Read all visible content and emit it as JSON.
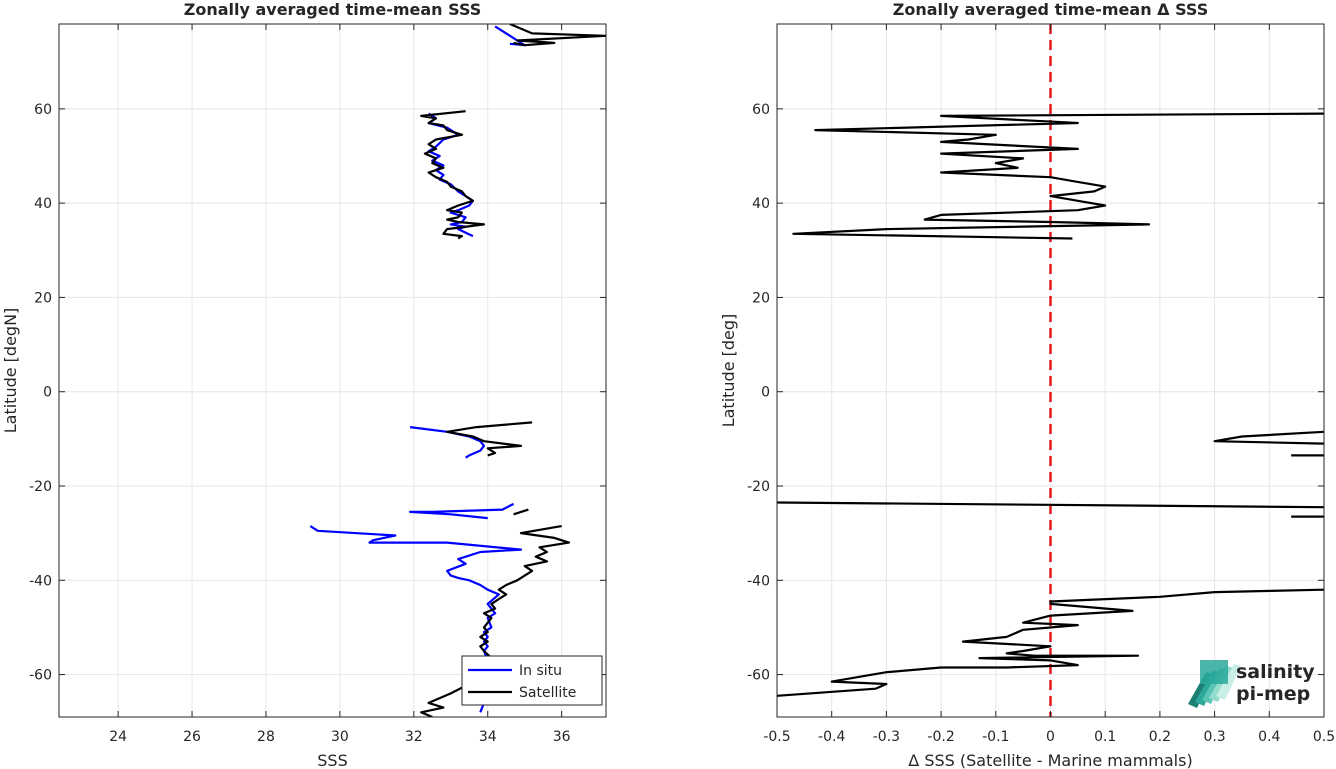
{
  "chart_data": [
    {
      "type": "line",
      "title": "Zonally averaged time-mean SSS",
      "xlabel": "SSS",
      "ylabel": "Latitude [degN]",
      "xlim": [
        22.4,
        37.2
      ],
      "ylim": [
        -69,
        78
      ],
      "xticks": [
        24,
        26,
        28,
        30,
        32,
        34,
        36
      ],
      "yticks": [
        -60,
        -40,
        -20,
        0,
        20,
        40,
        60
      ],
      "grid": true,
      "legend": {
        "placement": "bottom-right",
        "entries": [
          "In situ",
          "Satellite"
        ]
      },
      "colors": {
        "In situ": "#0000ff",
        "Satellite": "#000000"
      },
      "series": [
        {
          "name": "In situ",
          "segments": [
            [
              [
                34.2,
                77.5
              ],
              [
                34.5,
                76.0
              ],
              [
                34.8,
                74.5
              ],
              [
                35.0,
                73.5
              ],
              [
                34.6,
                73.8
              ]
            ],
            [
              [
                32.4,
                59.0
              ],
              [
                32.6,
                58.0
              ],
              [
                32.4,
                57.0
              ],
              [
                32.9,
                56.0
              ],
              [
                33.2,
                54.5
              ],
              [
                32.8,
                53.5
              ],
              [
                32.6,
                52.0
              ],
              [
                32.4,
                51.0
              ],
              [
                32.7,
                50.0
              ],
              [
                32.5,
                49.0
              ],
              [
                32.8,
                48.0
              ],
              [
                32.6,
                47.0
              ],
              [
                32.8,
                46.0
              ],
              [
                32.7,
                45.0
              ],
              [
                33.0,
                44.0
              ],
              [
                33.2,
                42.5
              ],
              [
                33.4,
                41.5
              ],
              [
                33.6,
                40.5
              ],
              [
                33.5,
                39.5
              ],
              [
                33.2,
                38.5
              ],
              [
                33.0,
                38.0
              ],
              [
                33.4,
                37.0
              ],
              [
                33.3,
                36.0
              ],
              [
                33.0,
                35.5
              ],
              [
                33.4,
                35.0
              ],
              [
                33.2,
                34.5
              ],
              [
                33.6,
                33.0
              ]
            ],
            [
              [
                31.9,
                -7.5
              ],
              [
                32.9,
                -8.5
              ],
              [
                33.5,
                -9.5
              ],
              [
                33.8,
                -10.5
              ],
              [
                33.9,
                -11.5
              ],
              [
                33.8,
                -12.5
              ],
              [
                33.5,
                -13.5
              ],
              [
                33.4,
                -14.0
              ]
            ],
            [
              [
                34.7,
                -23.8
              ],
              [
                34.4,
                -25.0
              ],
              [
                32.5,
                -25.5
              ],
              [
                31.9,
                -25.5
              ],
              [
                33.0,
                -26.0
              ],
              [
                34.0,
                -26.8
              ]
            ],
            [
              [
                29.2,
                -28.5
              ],
              [
                29.4,
                -29.5
              ],
              [
                31.5,
                -30.5
              ],
              [
                30.9,
                -31.5
              ],
              [
                30.8,
                -32.0
              ],
              [
                32.9,
                -32.0
              ],
              [
                34.9,
                -33.5
              ],
              [
                33.8,
                -34.0
              ],
              [
                33.2,
                -35.5
              ],
              [
                33.4,
                -36.5
              ],
              [
                32.9,
                -38.0
              ],
              [
                33.0,
                -39.0
              ],
              [
                33.2,
                -39.5
              ],
              [
                33.5,
                -40.0
              ],
              [
                33.8,
                -41.0
              ],
              [
                34.0,
                -42.0
              ],
              [
                34.3,
                -43.0
              ],
              [
                34.0,
                -45.0
              ],
              [
                34.2,
                -47.0
              ],
              [
                34.0,
                -48.0
              ],
              [
                34.1,
                -50.0
              ],
              [
                33.9,
                -51.0
              ],
              [
                34.0,
                -52.0
              ],
              [
                33.9,
                -53.0
              ],
              [
                34.0,
                -54.0
              ],
              [
                33.9,
                -55.0
              ],
              [
                34.0,
                -57.0
              ],
              [
                34.0,
                -59.0
              ],
              [
                34.0,
                -60.0
              ],
              [
                33.9,
                -62.0
              ],
              [
                34.0,
                -64.0
              ],
              [
                33.9,
                -66.0
              ],
              [
                33.8,
                -68.0
              ]
            ]
          ]
        },
        {
          "name": "Satellite",
          "segments": [
            [
              [
                34.6,
                78.0
              ],
              [
                35.2,
                76.0
              ],
              [
                37.2,
                75.5
              ],
              [
                34.8,
                74.5
              ],
              [
                35.8,
                74.0
              ],
              [
                35.0,
                73.5
              ],
              [
                34.7,
                74.0
              ]
            ],
            [
              [
                33.4,
                59.5
              ],
              [
                32.2,
                58.5
              ],
              [
                32.6,
                58.0
              ],
              [
                32.4,
                57.0
              ],
              [
                32.8,
                56.5
              ],
              [
                32.9,
                55.5
              ],
              [
                33.3,
                54.5
              ],
              [
                32.6,
                53.5
              ],
              [
                32.4,
                52.5
              ],
              [
                32.6,
                51.5
              ],
              [
                32.3,
                50.5
              ],
              [
                32.6,
                49.5
              ],
              [
                32.5,
                48.5
              ],
              [
                32.8,
                47.5
              ],
              [
                32.4,
                46.5
              ],
              [
                32.6,
                45.5
              ],
              [
                32.9,
                44.5
              ],
              [
                33.0,
                43.5
              ],
              [
                33.3,
                42.5
              ],
              [
                33.4,
                41.5
              ],
              [
                33.6,
                40.5
              ],
              [
                33.2,
                39.5
              ],
              [
                32.9,
                38.5
              ],
              [
                33.3,
                38.0
              ],
              [
                33.2,
                37.0
              ],
              [
                32.9,
                36.5
              ],
              [
                33.2,
                36.0
              ],
              [
                33.9,
                35.5
              ],
              [
                32.9,
                34.5
              ],
              [
                32.8,
                33.5
              ],
              [
                33.3,
                33.0
              ],
              [
                33.2,
                32.5
              ]
            ],
            [
              [
                35.2,
                -6.5
              ],
              [
                33.7,
                -7.5
              ],
              [
                32.9,
                -8.5
              ],
              [
                33.6,
                -9.5
              ],
              [
                33.9,
                -10.5
              ],
              [
                34.9,
                -11.5
              ],
              [
                34.0,
                -12.0
              ],
              [
                34.2,
                -13.0
              ],
              [
                34.0,
                -13.5
              ]
            ],
            [
              [
                34.7,
                -26.0
              ],
              [
                35.1,
                -25.0
              ]
            ],
            [
              [
                36.0,
                -28.5
              ],
              [
                34.9,
                -30.0
              ],
              [
                35.8,
                -31.0
              ],
              [
                36.2,
                -32.0
              ],
              [
                35.4,
                -33.0
              ],
              [
                35.6,
                -34.0
              ],
              [
                35.3,
                -35.0
              ],
              [
                35.6,
                -36.0
              ],
              [
                35.0,
                -37.0
              ],
              [
                35.2,
                -38.0
              ],
              [
                35.0,
                -39.0
              ],
              [
                34.8,
                -40.0
              ],
              [
                34.5,
                -41.0
              ],
              [
                34.3,
                -42.0
              ],
              [
                34.5,
                -43.0
              ],
              [
                34.3,
                -44.0
              ],
              [
                34.1,
                -45.0
              ],
              [
                34.2,
                -46.0
              ],
              [
                33.9,
                -47.0
              ],
              [
                34.1,
                -48.0
              ],
              [
                33.9,
                -50.0
              ],
              [
                34.0,
                -51.0
              ],
              [
                33.8,
                -52.0
              ],
              [
                34.0,
                -53.0
              ],
              [
                33.8,
                -54.0
              ],
              [
                33.9,
                -55.0
              ],
              [
                34.1,
                -56.5
              ],
              [
                33.6,
                -58.0
              ],
              [
                33.9,
                -60.0
              ],
              [
                33.5,
                -62.0
              ],
              [
                33.0,
                -64.0
              ],
              [
                32.4,
                -66.0
              ],
              [
                32.8,
                -67.0
              ],
              [
                32.2,
                -68.0
              ],
              [
                32.5,
                -69.0
              ]
            ]
          ]
        }
      ]
    },
    {
      "type": "line",
      "title": "Zonally averaged time-mean Δ SSS",
      "xlabel": "Δ SSS (Satellite - Marine mammals)",
      "ylabel": "Latitude [deg]",
      "xlim": [
        -0.5,
        0.5
      ],
      "ylim": [
        -69,
        78
      ],
      "xticks": [
        -0.5,
        -0.4,
        -0.3,
        -0.2,
        -0.1,
        0,
        0.1,
        0.2,
        0.3,
        0.4,
        0.5
      ],
      "yticks": [
        -60,
        -40,
        -20,
        0,
        20,
        40,
        60
      ],
      "grid": true,
      "reference_line": {
        "x": 0,
        "color": "#e31a1c",
        "style": "dashed"
      },
      "series": [
        {
          "name": "",
          "color": "#000000",
          "segments": [
            [
              [
                0.5,
                59.0
              ],
              [
                -0.2,
                58.5
              ],
              [
                0.05,
                57.0
              ],
              [
                -0.43,
                55.5
              ],
              [
                -0.1,
                54.5
              ],
              [
                -0.15,
                53.5
              ],
              [
                -0.2,
                53.0
              ],
              [
                0.05,
                51.5
              ],
              [
                -0.2,
                50.5
              ],
              [
                -0.05,
                49.5
              ],
              [
                -0.1,
                48.5
              ],
              [
                -0.06,
                47.5
              ],
              [
                -0.2,
                46.5
              ],
              [
                0.0,
                45.5
              ],
              [
                0.05,
                44.5
              ],
              [
                0.1,
                43.5
              ],
              [
                0.08,
                42.5
              ],
              [
                0.0,
                41.5
              ],
              [
                0.05,
                40.5
              ],
              [
                0.1,
                39.5
              ],
              [
                0.05,
                38.5
              ],
              [
                -0.2,
                37.5
              ],
              [
                -0.23,
                36.5
              ],
              [
                0.0,
                36.0
              ],
              [
                0.18,
                35.5
              ],
              [
                -0.3,
                34.5
              ],
              [
                -0.47,
                33.5
              ],
              [
                0.04,
                32.5
              ]
            ],
            [
              [
                0.5,
                -8.5
              ],
              [
                0.35,
                -9.5
              ],
              [
                0.3,
                -10.5
              ],
              [
                0.5,
                -11.0
              ]
            ],
            [
              [
                0.44,
                -13.5
              ],
              [
                0.5,
                -13.5
              ]
            ],
            [
              [
                -0.5,
                -23.5
              ],
              [
                0.5,
                -24.5
              ]
            ],
            [
              [
                0.44,
                -26.5
              ],
              [
                0.5,
                -26.5
              ]
            ],
            [
              [
                0.5,
                -42.0
              ],
              [
                0.3,
                -42.5
              ],
              [
                0.2,
                -43.5
              ],
              [
                0.0,
                -44.5
              ],
              [
                0.0,
                -45.0
              ],
              [
                0.15,
                -46.5
              ],
              [
                0.0,
                -47.5
              ],
              [
                -0.05,
                -49.0
              ],
              [
                0.05,
                -49.5
              ],
              [
                -0.05,
                -50.5
              ],
              [
                -0.08,
                -52.0
              ],
              [
                -0.16,
                -53.0
              ],
              [
                0.0,
                -54.0
              ],
              [
                -0.05,
                -55.0
              ],
              [
                -0.08,
                -55.5
              ],
              [
                -0.03,
                -56.0
              ],
              [
                0.16,
                -56.0
              ],
              [
                -0.13,
                -56.5
              ],
              [
                0.0,
                -57.0
              ],
              [
                0.05,
                -58.0
              ],
              [
                -0.08,
                -58.5
              ],
              [
                -0.2,
                -58.5
              ],
              [
                -0.3,
                -59.5
              ],
              [
                -0.4,
                -61.5
              ],
              [
                -0.3,
                -62.0
              ],
              [
                -0.32,
                -63.0
              ],
              [
                -0.5,
                -64.5
              ]
            ]
          ]
        }
      ]
    }
  ],
  "logo": {
    "line1": "salinity",
    "line2": "pi-mep"
  }
}
